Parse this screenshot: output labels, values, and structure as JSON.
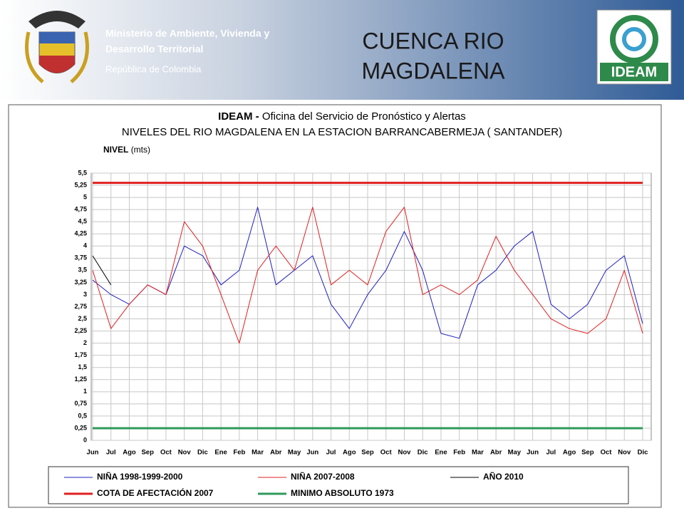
{
  "header": {
    "ministry_line1": "Ministerio de Ambiente, Vivienda y",
    "ministry_line2": "Desarrollo Territorial",
    "ministry_line3": "República de Colombia",
    "slide_title_line1": "CUENCA RIO",
    "slide_title_line2": "MAGDALENA",
    "logo_text": "IDEAM"
  },
  "chart_data": {
    "type": "line",
    "title_bold": "IDEAM -",
    "title": "Oficina del Servicio de Pronóstico y Alertas",
    "subtitle": "NIVELES DEL RIO MAGDALENA EN LA ESTACION BARRANCABERMEJA ( SANTANDER)",
    "ylabel_bold": "NIVEL",
    "ylabel": "(mts)",
    "categories": [
      "Jun",
      "Jul",
      "Ago",
      "Sep",
      "Oct",
      "Nov",
      "Dic",
      "Ene",
      "Feb",
      "Mar",
      "Abr",
      "May",
      "Jun",
      "Jul",
      "Ago",
      "Sep",
      "Oct",
      "Nov",
      "Dic",
      "Ene",
      "Feb",
      "Mar",
      "Abr",
      "May",
      "Jun",
      "Jul",
      "Ago",
      "Sep",
      "Oct",
      "Nov",
      "Dic"
    ],
    "ylim": [
      0,
      5.5
    ],
    "yticks": [
      0,
      {
        "value": 0.25,
        "label": "0,25"
      },
      {
        "value": 0.5,
        "label": "0,5"
      },
      {
        "value": 0.75,
        "label": "0,75"
      },
      1,
      {
        "value": 1.25,
        "label": "1,25"
      },
      {
        "value": 1.5,
        "label": "1,5"
      },
      {
        "value": 1.75,
        "label": "1,75"
      },
      2,
      {
        "value": 2.25,
        "label": "2,25"
      },
      {
        "value": 2.5,
        "label": "2,5"
      },
      {
        "value": 2.75,
        "label": "2,75"
      },
      3,
      {
        "value": 3.25,
        "label": "3,25"
      },
      {
        "value": 3.5,
        "label": "3,5"
      },
      {
        "value": 3.75,
        "label": "3,75"
      },
      4,
      {
        "value": 4.25,
        "label": "4,25"
      },
      {
        "value": 4.5,
        "label": "4,5"
      },
      {
        "value": 4.75,
        "label": "4,75"
      },
      5,
      {
        "value": 5.25,
        "label": "5,25"
      },
      {
        "value": 5.5,
        "label": "5,5"
      }
    ],
    "grid": true,
    "series": [
      {
        "name": "NIÑA 1998-1999-2000",
        "color": "#1f1fbf",
        "linewidth": 1,
        "values": [
          3.3,
          3.0,
          2.8,
          3.2,
          3.0,
          4.0,
          3.8,
          3.2,
          3.5,
          4.8,
          3.2,
          3.5,
          3.8,
          2.8,
          2.3,
          3.0,
          3.5,
          4.3,
          3.5,
          2.2,
          2.1,
          3.2,
          3.5,
          4.0,
          4.3,
          2.8,
          2.5,
          2.8,
          3.5,
          3.8,
          2.4
        ]
      },
      {
        "name": "NIÑA 2007-2008",
        "color": "#e02020",
        "linewidth": 1,
        "values": [
          3.5,
          2.3,
          2.8,
          3.2,
          3.0,
          4.5,
          4.0,
          3.0,
          2.0,
          3.5,
          4.0,
          3.5,
          4.8,
          3.2,
          3.5,
          3.2,
          4.3,
          4.8,
          3.0,
          3.2,
          3.0,
          3.3,
          4.2,
          3.5,
          3.0,
          2.5,
          2.3,
          2.2,
          2.5,
          3.5,
          2.2
        ]
      },
      {
        "name": "AÑO 2010",
        "color": "#000000",
        "linewidth": 1,
        "values": [
          3.8,
          3.2,
          null,
          null,
          null,
          null,
          null,
          null,
          null,
          null,
          null,
          null,
          null,
          null,
          null,
          null,
          null,
          null,
          null,
          null,
          null,
          null,
          null,
          null,
          null,
          null,
          null,
          null,
          null,
          null,
          null
        ]
      },
      {
        "name": "COTA DE AFECTACIÓN 2007",
        "color": "#e02020",
        "linewidth": 3,
        "values": [
          5.3,
          5.3,
          5.3,
          5.3,
          5.3,
          5.3,
          5.3,
          5.3,
          5.3,
          5.3,
          5.3,
          5.3,
          5.3,
          5.3,
          5.3,
          5.3,
          5.3,
          5.3,
          5.3,
          5.3,
          5.3,
          5.3,
          5.3,
          5.3,
          5.3,
          5.3,
          5.3,
          5.3,
          5.3,
          5.3,
          5.3
        ]
      },
      {
        "name": "MINIMO ABSOLUTO 1973",
        "color": "#2e9a5a",
        "linewidth": 3,
        "values": [
          0.25,
          0.25,
          0.25,
          0.25,
          0.25,
          0.25,
          0.25,
          0.25,
          0.25,
          0.25,
          0.25,
          0.25,
          0.25,
          0.25,
          0.25,
          0.25,
          0.25,
          0.25,
          0.25,
          0.25,
          0.25,
          0.25,
          0.25,
          0.25,
          0.25,
          0.25,
          0.25,
          0.25,
          0.25,
          0.25,
          0.25
        ]
      }
    ]
  }
}
